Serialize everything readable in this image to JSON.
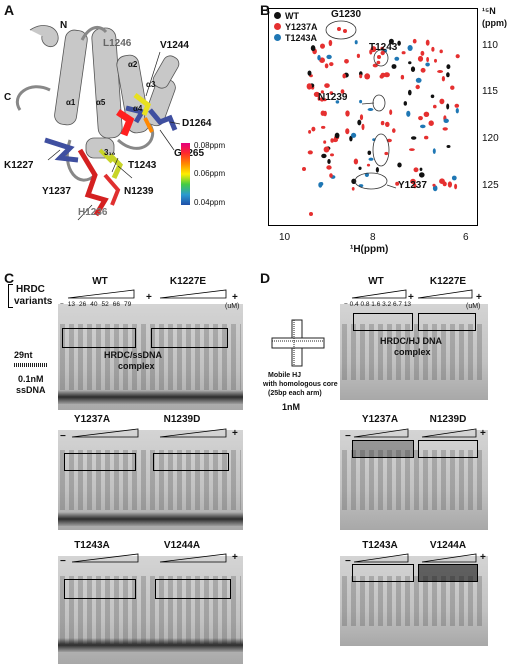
{
  "panelA": {
    "letter": "A",
    "labels": {
      "n_term": "N",
      "c_term": "C",
      "l1246": "L1246",
      "v1244": "V1244",
      "d1264": "D1264",
      "g1265": "G1265",
      "k1227": "K1227",
      "t1243": "T1243",
      "y1237": "Y1237",
      "n1239": "N1239",
      "h1236": "H1236",
      "a1": "α1",
      "a2": "α2",
      "a3": "α3",
      "a4": "α4",
      "a5": "α5",
      "helix310": "3₁₀"
    },
    "colorbar": {
      "top": "0.08ppm",
      "mid": "0.06ppm",
      "bottom": "0.04ppm",
      "colors": [
        "#e5007e",
        "#ff2a2a",
        "#ff8800",
        "#ffee00",
        "#44cc44",
        "#2a9ad0",
        "#1f4fa8"
      ]
    }
  },
  "panelB": {
    "letter": "B",
    "legend": [
      {
        "name": "WT",
        "color": "#111111"
      },
      {
        "name": "Y1237A",
        "color": "#e53030"
      },
      {
        "name": "T1243A",
        "color": "#1f77b4"
      }
    ],
    "x_label": "¹H(ppm)",
    "y_label": "¹⁵N",
    "y_unit": "(ppm)",
    "x_ticks": [
      "10",
      "8",
      "6"
    ],
    "y_ticks": [
      "110",
      "115",
      "120",
      "125"
    ],
    "annotations": {
      "g1230": "G1230",
      "t1243": "T1243",
      "n1239": "N1239",
      "y1237": "Y1237"
    }
  },
  "panelC": {
    "letter": "C",
    "variants_label_1": "HRDC",
    "variants_label_2": "variants",
    "dna_len": "29nt",
    "conc_1": "0.1nM",
    "conc_2": "ssDNA",
    "complex_1": "HRDC/ssDNA",
    "complex_2": "complex",
    "titration": [
      "13",
      "26",
      "40",
      "52",
      "66",
      "79"
    ],
    "unit": "(uM)",
    "minus": "−",
    "plus": "+",
    "gels": [
      "WT",
      "K1227E",
      "Y1237A",
      "N1239D",
      "T1243A",
      "V1244A"
    ]
  },
  "panelD": {
    "letter": "D",
    "substrate_1": "Mobile HJ",
    "substrate_2": "with homologous core",
    "substrate_3": "(25bp each arm)",
    "conc": "1nM",
    "complex_1": "HRDC/HJ DNA",
    "complex_2": "complex",
    "titration": "0.4 0.8 1.6 3.2 6.7 13",
    "unit": "(uM)",
    "minus": "−",
    "plus": "+",
    "gels": [
      "WT",
      "K1227E",
      "Y1237A",
      "N1239D",
      "T1243A",
      "V1244A"
    ]
  }
}
